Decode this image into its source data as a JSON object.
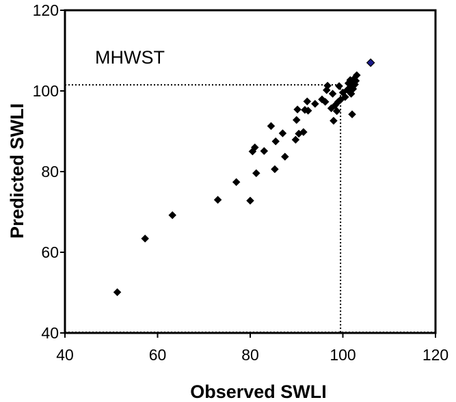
{
  "chart_data": {
    "type": "scatter",
    "title": "",
    "xlabel": "Observed SWLI",
    "ylabel": "Predicted SWLI",
    "xlim": [
      40,
      120
    ],
    "ylim": [
      40,
      120
    ],
    "xticks": [
      40,
      60,
      80,
      100,
      120
    ],
    "yticks": [
      40,
      60,
      80,
      100,
      120
    ],
    "xtick_labels": [
      "40",
      "60",
      "80",
      "100",
      "120"
    ],
    "ytick_labels": [
      "40",
      "60",
      "80",
      "100",
      "120"
    ],
    "grid": false,
    "annotation": "MHWST",
    "reference_lines": {
      "x": 99.5,
      "y": 101.5
    },
    "colors": {
      "points": "#000000",
      "highlight": "#1a1a8c",
      "highlight_edge": "#000000"
    },
    "series": [
      {
        "points": [
          [
            51.3,
            50.1
          ],
          [
            57.3,
            63.4
          ],
          [
            63.2,
            69.2
          ],
          [
            73.0,
            73.0
          ],
          [
            80.0,
            72.8
          ],
          [
            77.0,
            77.4
          ],
          [
            81.3,
            79.6
          ],
          [
            80.5,
            85.0
          ],
          [
            81.0,
            86.0
          ],
          [
            83.0,
            85.1
          ],
          [
            84.5,
            91.3
          ],
          [
            85.3,
            80.6
          ],
          [
            85.5,
            87.5
          ],
          [
            87.0,
            89.5
          ],
          [
            87.5,
            83.7
          ],
          [
            89.8,
            87.9
          ],
          [
            90.0,
            92.8
          ],
          [
            90.2,
            95.4
          ],
          [
            90.5,
            89.4
          ],
          [
            91.5,
            89.8
          ],
          [
            91.8,
            95.3
          ],
          [
            92.3,
            97.4
          ],
          [
            92.5,
            95.1
          ],
          [
            94.0,
            96.8
          ],
          [
            95.5,
            97.9
          ],
          [
            96.2,
            97.3
          ],
          [
            96.5,
            100.2
          ],
          [
            96.7,
            101.3
          ],
          [
            97.5,
            95.7
          ],
          [
            97.8,
            99.3
          ],
          [
            98.0,
            92.6
          ],
          [
            98.3,
            96.4
          ],
          [
            98.7,
            95.0
          ],
          [
            99.0,
            97.3
          ],
          [
            99.2,
            101.2
          ],
          [
            99.5,
            97.8
          ],
          [
            100.0,
            99.6
          ],
          [
            100.5,
            98.5
          ],
          [
            101.0,
            100.3
          ],
          [
            101.2,
            101.9
          ],
          [
            101.5,
            100.8
          ],
          [
            101.6,
            102.7
          ],
          [
            101.8,
            99.3
          ],
          [
            102.0,
            101.6
          ],
          [
            102.2,
            100.5
          ],
          [
            102.4,
            103.0
          ],
          [
            102.6,
            101.6
          ],
          [
            102.8,
            102.5
          ],
          [
            103.0,
            103.9
          ],
          [
            102.0,
            94.2
          ]
        ]
      },
      {
        "points": [
          [
            106.0,
            107.0
          ]
        ]
      }
    ]
  }
}
